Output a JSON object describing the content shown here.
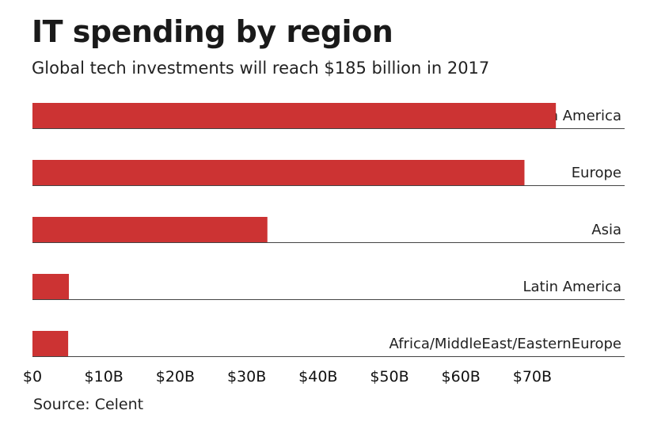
{
  "header": {
    "title": "IT spending by region",
    "subtitle": "Global tech investments will reach $185 billion in 2017"
  },
  "footer": {
    "source": "Source: Celent"
  },
  "colors": {
    "bar": "#cc3333",
    "baseline": "#444444"
  },
  "chart_data": {
    "type": "bar",
    "orientation": "horizontal",
    "categories": [
      "North America",
      "Europe",
      "Asia",
      "Latin America",
      "Africa/MiddleEast/EasternEurope"
    ],
    "values": [
      73.3,
      68.9,
      32.9,
      5.1,
      5.0
    ],
    "xlim": [
      0,
      83
    ],
    "x_ticks": [
      0,
      10,
      20,
      30,
      40,
      50,
      60,
      70
    ],
    "x_tick_labels": [
      "$0",
      "$10B",
      "$20B",
      "$30B",
      "$40B",
      "$50B",
      "$60B",
      "$70B"
    ],
    "grid": false,
    "legend": "none"
  }
}
